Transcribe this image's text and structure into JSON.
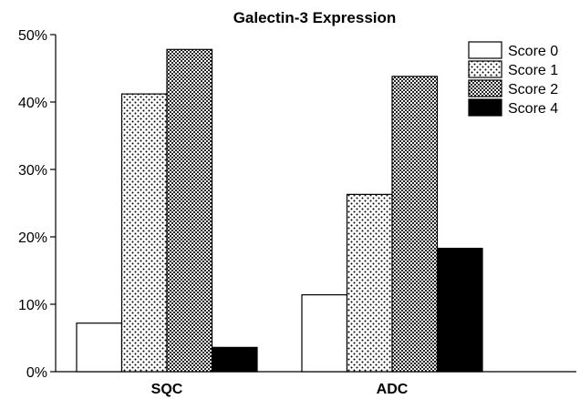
{
  "chart_data": {
    "type": "bar",
    "title": "Galectin-3 Expression",
    "xlabel": "",
    "ylabel": "",
    "categories": [
      "SQC",
      "ADC"
    ],
    "ylim": [
      0,
      50
    ],
    "y_ticks": [
      "0%",
      "10%",
      "20%",
      "30%",
      "40%",
      "50%"
    ],
    "y_tick_values": [
      0,
      10,
      20,
      30,
      40,
      50
    ],
    "grid": false,
    "legend_position": "top-right",
    "series": [
      {
        "name": "Score 0",
        "values": [
          7.2,
          11.4
        ],
        "fill": "white"
      },
      {
        "name": "Score 1",
        "values": [
          41.2,
          26.3
        ],
        "fill": "dots"
      },
      {
        "name": "Score 2",
        "values": [
          47.8,
          43.8
        ],
        "fill": "crosshatch"
      },
      {
        "name": "Score 4",
        "values": [
          3.6,
          18.3
        ],
        "fill": "black"
      }
    ]
  }
}
